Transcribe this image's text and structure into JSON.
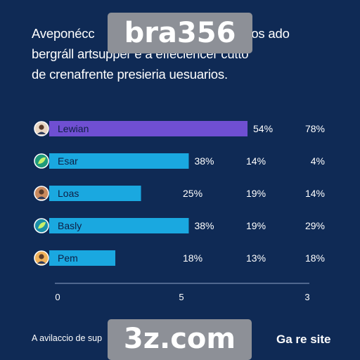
{
  "watermarks": {
    "top": "bra356",
    "bottom": "3z.com"
  },
  "intro": {
    "line1": "Aveponécc",
    "line1_tail": "fos ado",
    "line2": "bergráll artsupper e a effeciencer cutto",
    "line3": "de crenafrente presieria uesuarios."
  },
  "chart_data": {
    "type": "bar",
    "orientation": "horizontal",
    "categories": [
      "Lewian",
      "Esar",
      "Loas",
      "Basly",
      "Pem"
    ],
    "series": [
      {
        "values": [
          54,
          38,
          25,
          38,
          18
        ]
      },
      {
        "values": [
          null,
          14,
          19,
          19,
          13
        ]
      },
      {
        "values": [
          78,
          4,
          14,
          29,
          18
        ]
      }
    ],
    "value_labels": [
      [
        "54%",
        "",
        "78%"
      ],
      [
        "38%",
        "14%",
        "4%"
      ],
      [
        "25%",
        "19%",
        "14%"
      ],
      [
        "38%",
        "19%",
        "29%"
      ],
      [
        "18%",
        "13%",
        "18%"
      ]
    ],
    "bar_colors": [
      "#6f4fd2",
      "#1aa8e0",
      "#1aa8e0",
      "#1aa8e0",
      "#1aa8e0"
    ],
    "x_ticks": [
      "0",
      "5",
      "3"
    ],
    "grid": false,
    "legend": "none",
    "avatars": [
      {
        "icon": "person-avatar-icon",
        "color": "#e9d7c4"
      },
      {
        "icon": "leaf-avatar-icon",
        "color": "#1f9a7a"
      },
      {
        "icon": "person-avatar-icon",
        "color": "#c98a5e"
      },
      {
        "icon": "leaf-avatar-icon",
        "color": "#1b8ea8"
      },
      {
        "icon": "person-avatar-icon",
        "color": "#f0b25a"
      }
    ]
  },
  "footer": {
    "note": "A avilaccio de sup",
    "brand": "Ga re site"
  }
}
